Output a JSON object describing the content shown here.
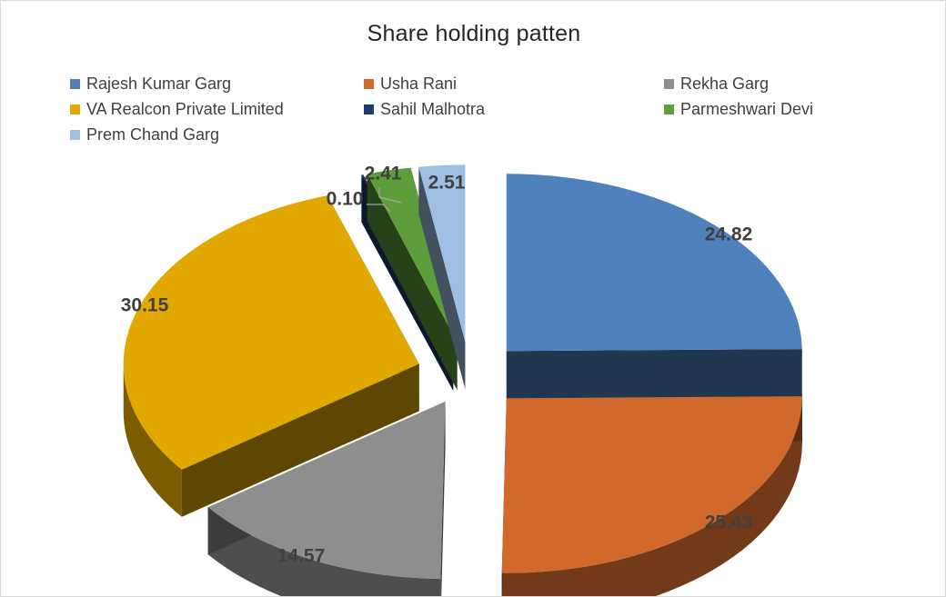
{
  "chart_data": {
    "type": "pie",
    "variant": "3d-exploded",
    "title": "Share holding patten",
    "legend_position": "top",
    "series": [
      {
        "name": "Rajesh Kumar Garg",
        "value": 24.82,
        "label": "24.82",
        "color": "#4f81bd"
      },
      {
        "name": "Usha Rani",
        "value": 25.43,
        "label": "25.43",
        "color": "#d0692b"
      },
      {
        "name": "Rekha Garg",
        "value": 14.57,
        "label": "14.57",
        "color": "#8e8e8e"
      },
      {
        "name": "VA Realcon Private Limited",
        "value": 30.15,
        "label": "30.15",
        "color": "#e0a800"
      },
      {
        "name": "Sahil Malhotra",
        "value": 0.1,
        "label": "0.10",
        "color": "#1f3a6e"
      },
      {
        "name": "Parmeshwari Devi",
        "value": 2.41,
        "label": "2.41",
        "color": "#5e9e3a"
      },
      {
        "name": "Prem Chand Garg",
        "value": 2.51,
        "label": "2.51",
        "color": "#9dbfe3"
      }
    ]
  }
}
